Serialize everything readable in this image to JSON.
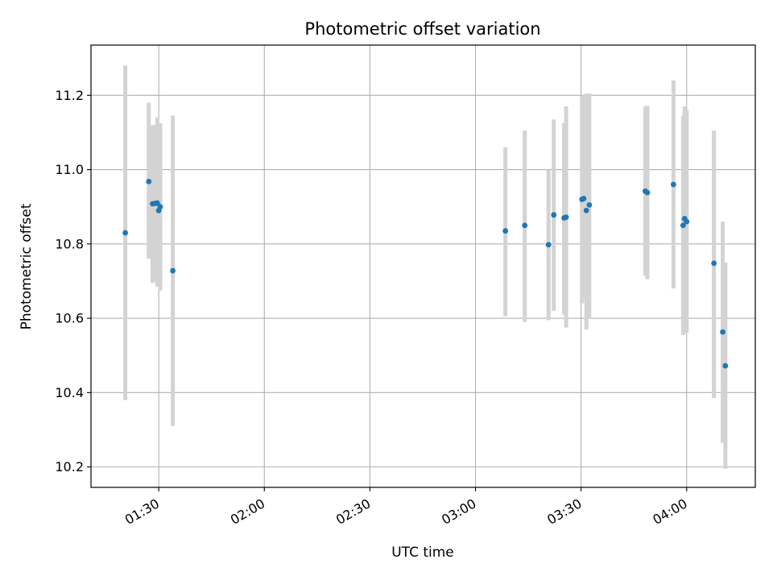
{
  "chart_data": {
    "type": "scatter",
    "title": "Photometric offset variation",
    "xlabel": "UTC time",
    "ylabel": "Photometric offset",
    "x_axis_kind": "time",
    "xlim": [
      "01:10:45",
      "04:19:30"
    ],
    "ylim": [
      10.145,
      11.335
    ],
    "x_ticks": [
      "01:30",
      "02:00",
      "02:30",
      "03:00",
      "03:30",
      "04:00"
    ],
    "y_ticks": [
      10.2,
      10.4,
      10.6,
      10.8,
      11.0,
      11.2
    ],
    "y_tick_labels": [
      "10.2",
      "10.4",
      "10.6",
      "10.8",
      "11.0",
      "11.2"
    ],
    "grid": true,
    "colors": {
      "point": "#1f77b4",
      "errorbar": "#d3d3d3",
      "grid": "#b0b0b0"
    },
    "points": [
      {
        "t": "01:20:30",
        "y": 10.83,
        "ylow": 10.38,
        "yhigh": 11.28
      },
      {
        "t": "01:27:10",
        "y": 10.968,
        "ylow": 10.76,
        "yhigh": 11.18
      },
      {
        "t": "01:28:15",
        "y": 10.908,
        "ylow": 10.695,
        "yhigh": 11.12
      },
      {
        "t": "01:29:00",
        "y": 10.909,
        "ylow": 10.7,
        "yhigh": 11.12
      },
      {
        "t": "01:29:35",
        "y": 10.91,
        "ylow": 10.685,
        "yhigh": 11.14
      },
      {
        "t": "01:30:00",
        "y": 10.89,
        "ylow": 10.69,
        "yhigh": 11.12
      },
      {
        "t": "01:30:25",
        "y": 10.9,
        "ylow": 10.675,
        "yhigh": 11.125
      },
      {
        "t": "01:34:00",
        "y": 10.728,
        "ylow": 10.31,
        "yhigh": 11.145
      },
      {
        "t": "03:08:30",
        "y": 10.835,
        "ylow": 10.605,
        "yhigh": 11.06
      },
      {
        "t": "03:14:00",
        "y": 10.85,
        "ylow": 10.59,
        "yhigh": 11.105
      },
      {
        "t": "03:20:45",
        "y": 10.798,
        "ylow": 10.595,
        "yhigh": 11.0
      },
      {
        "t": "03:22:15",
        "y": 10.878,
        "ylow": 10.62,
        "yhigh": 11.135
      },
      {
        "t": "03:25:10",
        "y": 10.87,
        "ylow": 10.61,
        "yhigh": 11.125
      },
      {
        "t": "03:25:45",
        "y": 10.872,
        "ylow": 10.575,
        "yhigh": 11.17
      },
      {
        "t": "03:30:15",
        "y": 10.92,
        "ylow": 10.64,
        "yhigh": 11.195
      },
      {
        "t": "03:30:45",
        "y": 10.922,
        "ylow": 10.655,
        "yhigh": 11.2
      },
      {
        "t": "03:31:30",
        "y": 10.89,
        "ylow": 10.57,
        "yhigh": 11.205
      },
      {
        "t": "03:32:20",
        "y": 10.905,
        "ylow": 10.6,
        "yhigh": 11.205
      },
      {
        "t": "03:48:15",
        "y": 10.942,
        "ylow": 10.715,
        "yhigh": 11.17
      },
      {
        "t": "03:48:50",
        "y": 10.938,
        "ylow": 10.705,
        "yhigh": 11.172
      },
      {
        "t": "03:56:15",
        "y": 10.96,
        "ylow": 10.68,
        "yhigh": 11.24
      },
      {
        "t": "03:59:00",
        "y": 10.85,
        "ylow": 10.555,
        "yhigh": 11.145
      },
      {
        "t": "03:59:25",
        "y": 10.868,
        "ylow": 10.56,
        "yhigh": 11.17
      },
      {
        "t": "04:00:00",
        "y": 10.86,
        "ylow": 10.56,
        "yhigh": 11.16
      },
      {
        "t": "04:07:45",
        "y": 10.748,
        "ylow": 10.385,
        "yhigh": 11.105
      },
      {
        "t": "04:10:15",
        "y": 10.563,
        "ylow": 10.265,
        "yhigh": 10.86
      },
      {
        "t": "04:11:00",
        "y": 10.472,
        "ylow": 10.195,
        "yhigh": 10.75
      }
    ]
  }
}
